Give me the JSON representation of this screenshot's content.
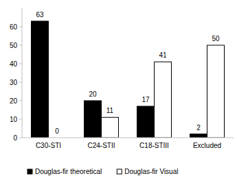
{
  "chart_data": {
    "type": "bar",
    "categories": [
      "C30-STI",
      "C24-STII",
      "C18-STIII",
      "Excluded"
    ],
    "series": [
      {
        "name": "Douglas-fir theoretical",
        "color": "#000000",
        "values": [
          63,
          20,
          17,
          2
        ]
      },
      {
        "name": "Douglas-fir Visual",
        "color": "#ffffff",
        "values": [
          0,
          11,
          41,
          50
        ]
      }
    ],
    "ylim": [
      0,
      70
    ],
    "yticks": [
      0,
      10,
      20,
      30,
      40,
      50,
      60
    ],
    "grid": false,
    "legend": "bottom",
    "data_labels": true
  }
}
